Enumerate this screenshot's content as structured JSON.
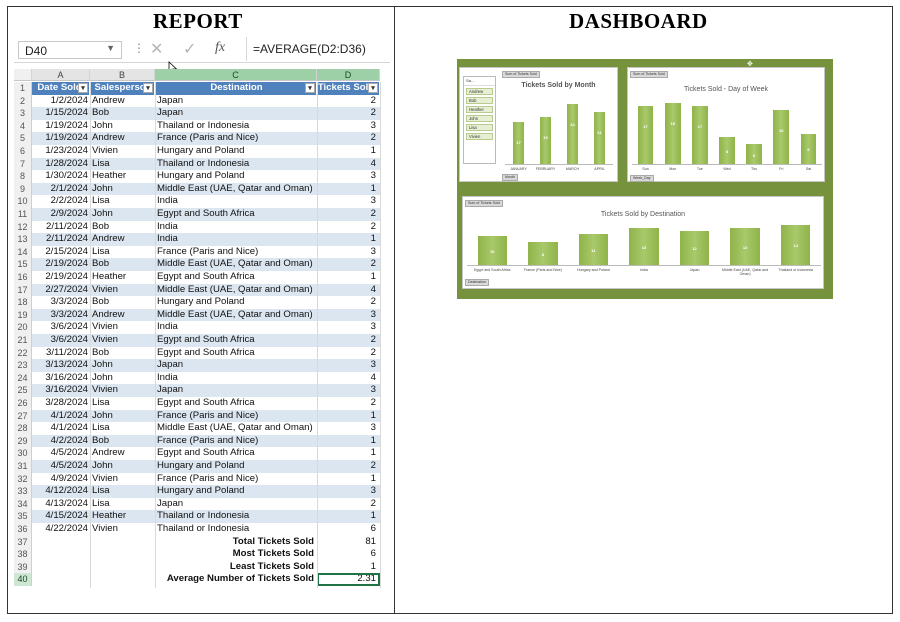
{
  "titles": {
    "report": "REPORT",
    "dashboard": "DASHBOARD"
  },
  "formula_bar": {
    "name_box": "D40",
    "formula": "=AVERAGE(D2:D36)"
  },
  "sheet": {
    "columns": [
      "A",
      "B",
      "C",
      "D"
    ],
    "headers": [
      "Date Sold",
      "Salesperson",
      "Destination",
      "Tickets Sold"
    ],
    "rows": [
      [
        "2",
        "1/2/2024",
        "Andrew",
        "Japan",
        "2"
      ],
      [
        "3",
        "1/15/2024",
        "Bob",
        "Japan",
        "2"
      ],
      [
        "4",
        "1/19/2024",
        "John",
        "Thailand or Indonesia",
        "3"
      ],
      [
        "5",
        "1/19/2024",
        "Andrew",
        "France (Paris and Nice)",
        "2"
      ],
      [
        "6",
        "1/23/2024",
        "Vivien",
        "Hungary and Poland",
        "1"
      ],
      [
        "7",
        "1/28/2024",
        "Lisa",
        "Thailand or Indonesia",
        "4"
      ],
      [
        "8",
        "1/30/2024",
        "Heather",
        "Hungary and Poland",
        "3"
      ],
      [
        "9",
        "2/1/2024",
        "John",
        "Middle East (UAE, Qatar and Oman)",
        "1"
      ],
      [
        "10",
        "2/2/2024",
        "Lisa",
        "India",
        "3"
      ],
      [
        "11",
        "2/9/2024",
        "John",
        "Egypt and South Africa",
        "2"
      ],
      [
        "12",
        "2/11/2024",
        "Bob",
        "India",
        "2"
      ],
      [
        "13",
        "2/11/2024",
        "Andrew",
        "India",
        "1"
      ],
      [
        "14",
        "2/15/2024",
        "Lisa",
        "France (Paris and Nice)",
        "3"
      ],
      [
        "15",
        "2/19/2024",
        "Bob",
        "Middle East (UAE, Qatar and Oman)",
        "2"
      ],
      [
        "16",
        "2/19/2024",
        "Heather",
        "Egypt and South Africa",
        "1"
      ],
      [
        "17",
        "2/27/2024",
        "Vivien",
        "Middle East (UAE, Qatar and Oman)",
        "4"
      ],
      [
        "18",
        "3/3/2024",
        "Bob",
        "Hungary and Poland",
        "2"
      ],
      [
        "19",
        "3/3/2024",
        "Andrew",
        "Middle East (UAE, Qatar and Oman)",
        "3"
      ],
      [
        "20",
        "3/6/2024",
        "Vivien",
        "India",
        "3"
      ],
      [
        "21",
        "3/6/2024",
        "Vivien",
        "Egypt and South Africa",
        "2"
      ],
      [
        "22",
        "3/11/2024",
        "Bob",
        "Egypt and South Africa",
        "2"
      ],
      [
        "23",
        "3/13/2024",
        "John",
        "Japan",
        "3"
      ],
      [
        "24",
        "3/16/2024",
        "John",
        "India",
        "4"
      ],
      [
        "25",
        "3/16/2024",
        "Vivien",
        "Japan",
        "3"
      ],
      [
        "26",
        "3/28/2024",
        "Lisa",
        "Egypt and South Africa",
        "2"
      ],
      [
        "27",
        "4/1/2024",
        "John",
        "France (Paris and Nice)",
        "1"
      ],
      [
        "28",
        "4/1/2024",
        "Lisa",
        "Middle East (UAE, Qatar and Oman)",
        "3"
      ],
      [
        "29",
        "4/2/2024",
        "Bob",
        "France (Paris and Nice)",
        "1"
      ],
      [
        "30",
        "4/5/2024",
        "Andrew",
        "Egypt and South Africa",
        "1"
      ],
      [
        "31",
        "4/5/2024",
        "John",
        "Hungary and Poland",
        "2"
      ],
      [
        "32",
        "4/9/2024",
        "Vivien",
        "France (Paris and Nice)",
        "1"
      ],
      [
        "33",
        "4/12/2024",
        "Lisa",
        "Hungary and Poland",
        "3"
      ],
      [
        "34",
        "4/13/2024",
        "Lisa",
        "Japan",
        "2"
      ],
      [
        "35",
        "4/15/2024",
        "Heather",
        "Thailand or Indonesia",
        "1"
      ],
      [
        "36",
        "4/22/2024",
        "Vivien",
        "Thailand or Indonesia",
        "6"
      ]
    ],
    "summary": [
      {
        "row": "37",
        "label": "Total Tickets Sold",
        "value": "81"
      },
      {
        "row": "38",
        "label": "Most Tickets Sold",
        "value": "6"
      },
      {
        "row": "39",
        "label": "Least Tickets Sold",
        "value": "1"
      },
      {
        "row": "40",
        "label": "Average Number of Tickets Sold",
        "value": "2.31"
      }
    ]
  },
  "dashboard": {
    "slicer": {
      "header": "Sa...",
      "items": [
        "Andrew",
        "Bob",
        "Heather",
        "John",
        "Lisa",
        "Vivien"
      ]
    },
    "field_tags": {
      "sum": "Sum of Tickets Sold",
      "month": "Month",
      "day": "Week_Day",
      "destination": "Destination"
    },
    "colors": {
      "background": "#76923c",
      "bar": "#9bbb59"
    }
  },
  "chart_data": [
    {
      "type": "bar",
      "title": "Tickets Sold by Month",
      "categories": [
        "JANUARY",
        "FEBRUARY",
        "MARCH",
        "APRIL"
      ],
      "values": [
        17,
        19,
        24,
        21
      ]
    },
    {
      "type": "bar",
      "title": "Tickets Sold - Day of Week",
      "categories": [
        "Sun",
        "Mon",
        "Tue",
        "Wed",
        "Thu",
        "Fri",
        "Sat"
      ],
      "values": [
        17,
        18,
        17,
        8,
        6,
        16,
        9
      ]
    },
    {
      "type": "bar",
      "title": "Tickets Sold by Destination",
      "categories": [
        "Egypt and South Africa",
        "France (Paris and Nice)",
        "Hungary and Poland",
        "India",
        "Japan",
        "Middle East (UAE, Qatar and Oman)",
        "Thailand or Indonesia"
      ],
      "values": [
        10,
        8,
        11,
        13,
        12,
        13,
        14
      ]
    }
  ]
}
